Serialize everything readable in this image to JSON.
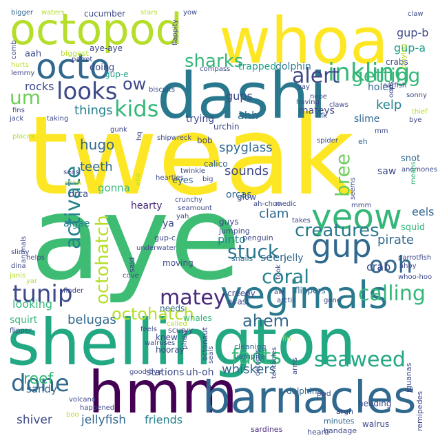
{
  "palette": {
    "yellow": "#fde725",
    "light_green": "#b5de2b",
    "green": "#6ece58",
    "mid_green": "#35b779",
    "teal": "#1f9e89",
    "blue_teal": "#26828e",
    "blue": "#31688e",
    "indigo": "#3e4989",
    "purple": "#482878",
    "dark_purple": "#440154",
    "background": "#ffffff"
  },
  "words": [
    "tweak",
    "aye",
    "shellington",
    "dashi",
    "whoa",
    "hmm",
    "barnacles",
    "octopod",
    "octo",
    "vegimals",
    "yeow",
    "gup",
    "inkling",
    "ooh",
    "done",
    "tunip",
    "matey",
    "activate",
    "octohatch",
    "calling",
    "coral",
    "alert",
    "looks",
    "kids",
    "facts",
    "seaweed",
    "stuck",
    "getting",
    "sharks",
    "ahem",
    "creatures",
    "um",
    "ow",
    "bree",
    "gup-b",
    "gup-a",
    "kelp",
    "reef",
    "belugas",
    "jellyfish",
    "whiskers",
    "friends",
    "shiver",
    "teeth",
    "hugo",
    "sounds",
    "spyglass",
    "things",
    "clam",
    "pirate",
    "eels",
    "crab",
    "gups",
    "rocks",
    "seen",
    "looking",
    "sandy",
    "pinto",
    "ahh",
    "stations",
    "uh-oh",
    "gonna",
    "trying",
    "mateys",
    "slime",
    "holes",
    "trapped",
    "dolphin",
    "jelly",
    "hearty",
    "algae",
    "orcas",
    "saw",
    "squirt",
    "ya",
    "doing",
    "aah",
    "cucumber",
    "comb",
    "aye-aye",
    "crabs",
    "dolphins",
    "heading",
    "walrus",
    "bandage",
    "sardines",
    "remipedes",
    "iguanas",
    "flippers",
    "glow",
    "gup-e",
    "gup-c",
    "orca",
    "eyes",
    "squid",
    "snot",
    "calico",
    "urchin",
    "bob",
    "avast",
    "whales",
    "creepy",
    "knew",
    "scurvy",
    "octonaut",
    "phew",
    "hooray",
    "cleaning",
    "vampire",
    "tentacles",
    "pod",
    "octopus",
    "minutes",
    "heard",
    "argh",
    "needs",
    "moving",
    "penguin",
    "guys",
    "jumping",
    "snails",
    "biggest",
    "bigger",
    "waters",
    "stars",
    "yow",
    "claw",
    "flappity",
    "hurts",
    "lemmy",
    "parrot",
    "compass",
    "eh",
    "spider",
    "yay",
    "nope",
    "claws",
    "oarfish",
    "sonny",
    "fins",
    "jack",
    "taking",
    "biscuits",
    "having",
    "ink",
    "aha",
    "shipwreck",
    "hq",
    "gunk",
    "mm",
    "bye",
    "thief",
    "oops",
    "playing",
    "seas",
    "places",
    "shhh",
    "hearties",
    "twinkle",
    "big",
    "seems",
    "means",
    "anemones",
    "crunchy",
    "seamount",
    "yah",
    "ah-choo",
    "medic",
    "mmm",
    "takes",
    "underwater",
    "animals",
    "helps",
    "slimy",
    "dina",
    "janis",
    "yar",
    "cove",
    "said",
    "took",
    "ahoy",
    "parrotfish",
    "whoo-hoo",
    "arctic",
    "aw",
    "gone",
    "finder",
    "flipper",
    "feels",
    "called",
    "walruses",
    "seals",
    "fin",
    "arms",
    "good-bye",
    "volcano",
    "happened",
    "boo",
    "eel",
    "pete",
    "seahorse"
  ]
}
